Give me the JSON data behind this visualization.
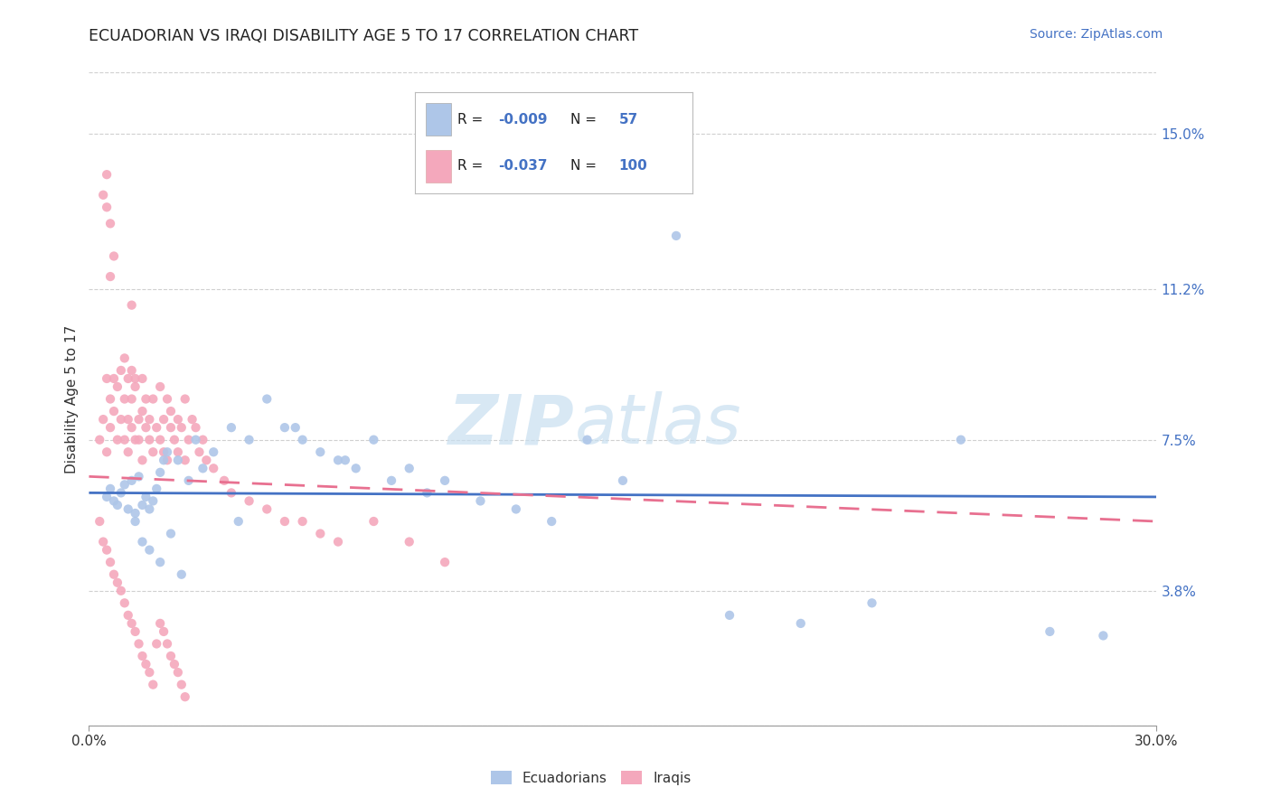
{
  "title": "ECUADORIAN VS IRAQI DISABILITY AGE 5 TO 17 CORRELATION CHART",
  "source": "Source: ZipAtlas.com",
  "ylabel": "Disability Age 5 to 17",
  "xlim": [
    0.0,
    30.0
  ],
  "ylim": [
    0.5,
    16.5
  ],
  "y_tick_values": [
    3.8,
    7.5,
    11.2,
    15.0
  ],
  "background_color": "#ffffff",
  "grid_color": "#d0d0d0",
  "ecu_color": "#aec6e8",
  "iraq_color": "#f4a8bc",
  "ecu_line_color": "#4472c4",
  "iraq_line_color": "#e87090",
  "ecu_R": -0.009,
  "ecu_N": 57,
  "iraq_R": -0.037,
  "iraq_N": 100,
  "ecu_x": [
    0.5,
    0.6,
    0.7,
    0.8,
    0.9,
    1.0,
    1.1,
    1.2,
    1.3,
    1.4,
    1.5,
    1.6,
    1.7,
    1.8,
    1.9,
    2.0,
    2.1,
    2.2,
    2.5,
    2.8,
    3.0,
    3.5,
    4.0,
    4.5,
    5.0,
    5.5,
    6.0,
    6.5,
    7.0,
    7.5,
    8.0,
    8.5,
    9.0,
    10.0,
    11.0,
    12.0,
    13.0,
    14.0,
    15.0,
    16.5,
    18.0,
    20.0,
    22.0,
    24.5,
    27.0,
    28.5,
    1.3,
    1.5,
    1.7,
    2.0,
    2.3,
    2.6,
    3.2,
    4.2,
    5.8,
    7.2,
    9.5
  ],
  "ecu_y": [
    6.1,
    6.3,
    6.0,
    5.9,
    6.2,
    6.4,
    5.8,
    6.5,
    5.7,
    6.6,
    5.9,
    6.1,
    5.8,
    6.0,
    6.3,
    6.7,
    7.0,
    7.2,
    7.0,
    6.5,
    7.5,
    7.2,
    7.8,
    7.5,
    8.5,
    7.8,
    7.5,
    7.2,
    7.0,
    6.8,
    7.5,
    6.5,
    6.8,
    6.5,
    6.0,
    5.8,
    5.5,
    7.5,
    6.5,
    12.5,
    3.2,
    3.0,
    3.5,
    7.5,
    2.8,
    2.7,
    5.5,
    5.0,
    4.8,
    4.5,
    5.2,
    4.2,
    6.8,
    5.5,
    7.8,
    7.0,
    6.2
  ],
  "iraq_x": [
    0.3,
    0.4,
    0.5,
    0.5,
    0.6,
    0.6,
    0.7,
    0.7,
    0.8,
    0.8,
    0.9,
    0.9,
    1.0,
    1.0,
    1.0,
    1.1,
    1.1,
    1.1,
    1.2,
    1.2,
    1.2,
    1.3,
    1.3,
    1.3,
    1.4,
    1.4,
    1.5,
    1.5,
    1.5,
    1.6,
    1.6,
    1.7,
    1.7,
    1.8,
    1.8,
    1.9,
    2.0,
    2.0,
    2.1,
    2.1,
    2.2,
    2.2,
    2.3,
    2.3,
    2.4,
    2.5,
    2.5,
    2.6,
    2.7,
    2.7,
    2.8,
    2.9,
    3.0,
    3.1,
    3.2,
    3.3,
    3.5,
    3.8,
    4.0,
    4.5,
    5.0,
    5.5,
    6.0,
    6.5,
    7.0,
    8.0,
    9.0,
    10.0,
    0.3,
    0.4,
    0.5,
    0.6,
    0.7,
    0.8,
    0.9,
    1.0,
    1.1,
    1.2,
    1.3,
    1.4,
    1.5,
    1.6,
    1.7,
    1.8,
    1.9,
    2.0,
    2.1,
    2.2,
    2.3,
    2.4,
    2.5,
    2.6,
    2.7,
    0.4,
    0.5,
    0.6,
    0.5,
    0.6,
    0.7,
    1.2
  ],
  "iraq_y": [
    7.5,
    8.0,
    7.2,
    9.0,
    8.5,
    7.8,
    9.0,
    8.2,
    8.8,
    7.5,
    9.2,
    8.0,
    7.5,
    8.5,
    9.5,
    8.0,
    7.2,
    9.0,
    8.5,
    7.8,
    9.2,
    7.5,
    8.8,
    9.0,
    8.0,
    7.5,
    8.2,
    7.0,
    9.0,
    7.8,
    8.5,
    7.5,
    8.0,
    7.2,
    8.5,
    7.8,
    7.5,
    8.8,
    8.0,
    7.2,
    8.5,
    7.0,
    7.8,
    8.2,
    7.5,
    8.0,
    7.2,
    7.8,
    8.5,
    7.0,
    7.5,
    8.0,
    7.8,
    7.2,
    7.5,
    7.0,
    6.8,
    6.5,
    6.2,
    6.0,
    5.8,
    5.5,
    5.5,
    5.2,
    5.0,
    5.5,
    5.0,
    4.5,
    5.5,
    5.0,
    4.8,
    4.5,
    4.2,
    4.0,
    3.8,
    3.5,
    3.2,
    3.0,
    2.8,
    2.5,
    2.2,
    2.0,
    1.8,
    1.5,
    2.5,
    3.0,
    2.8,
    2.5,
    2.2,
    2.0,
    1.8,
    1.5,
    1.2,
    13.5,
    14.0,
    12.8,
    13.2,
    11.5,
    12.0,
    10.8
  ]
}
